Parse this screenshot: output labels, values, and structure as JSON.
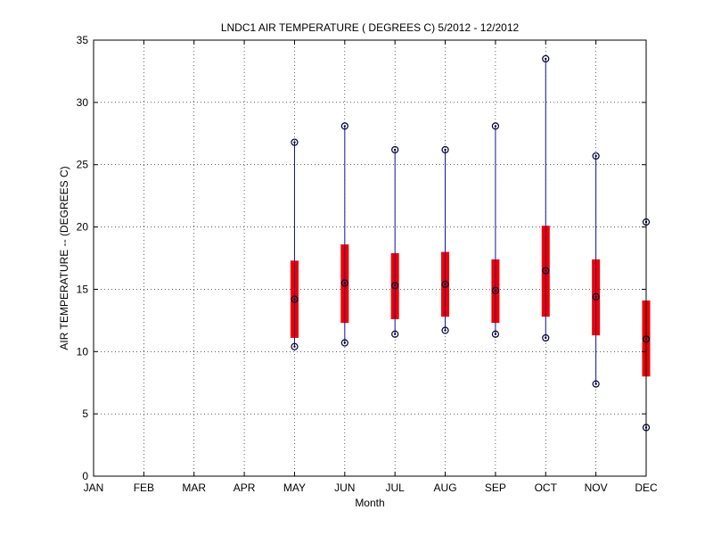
{
  "chart_data": {
    "type": "boxplot",
    "title": "LNDC1  AIR TEMPERATURE ( DEGREES C) 5/2012 - 12/2012",
    "xlabel": "Month",
    "ylabel": "AIR TEMPERATURE -- (DEGREES C)",
    "categories": [
      "JAN",
      "FEB",
      "MAR",
      "APR",
      "MAY",
      "JUN",
      "JUL",
      "AUG",
      "SEP",
      "OCT",
      "NOV",
      "DEC"
    ],
    "ylim": [
      0,
      35
    ],
    "yticks": [
      0,
      5,
      10,
      15,
      20,
      25,
      30,
      35
    ],
    "grid": true,
    "boxes": [
      {
        "month": "MAY",
        "min": 10.4,
        "q1": 11.1,
        "median": 14.2,
        "q3": 17.3,
        "max": 26.8
      },
      {
        "month": "JUN",
        "min": 10.7,
        "q1": 12.3,
        "median": 15.5,
        "q3": 18.6,
        "max": 28.1
      },
      {
        "month": "JUL",
        "min": 11.4,
        "q1": 12.6,
        "median": 15.3,
        "q3": 17.9,
        "max": 26.2
      },
      {
        "month": "AUG",
        "min": 11.7,
        "q1": 12.8,
        "median": 15.4,
        "q3": 18.0,
        "max": 26.2
      },
      {
        "month": "SEP",
        "min": 11.4,
        "q1": 12.3,
        "median": 14.9,
        "q3": 17.4,
        "max": 28.1
      },
      {
        "month": "OCT",
        "min": 11.1,
        "q1": 12.8,
        "median": 16.5,
        "q3": 20.1,
        "max": 33.5
      },
      {
        "month": "NOV",
        "min": 7.4,
        "q1": 11.3,
        "median": 14.4,
        "q3": 17.4,
        "max": 25.7
      },
      {
        "month": "DEC",
        "min": 3.9,
        "q1": 8.0,
        "median": 11.0,
        "q3": 14.1,
        "max": 20.4
      }
    ],
    "colors": {
      "box": "#ee0000",
      "whisker": "#1010a0",
      "marker": "#000033",
      "axis": "#000000"
    }
  }
}
